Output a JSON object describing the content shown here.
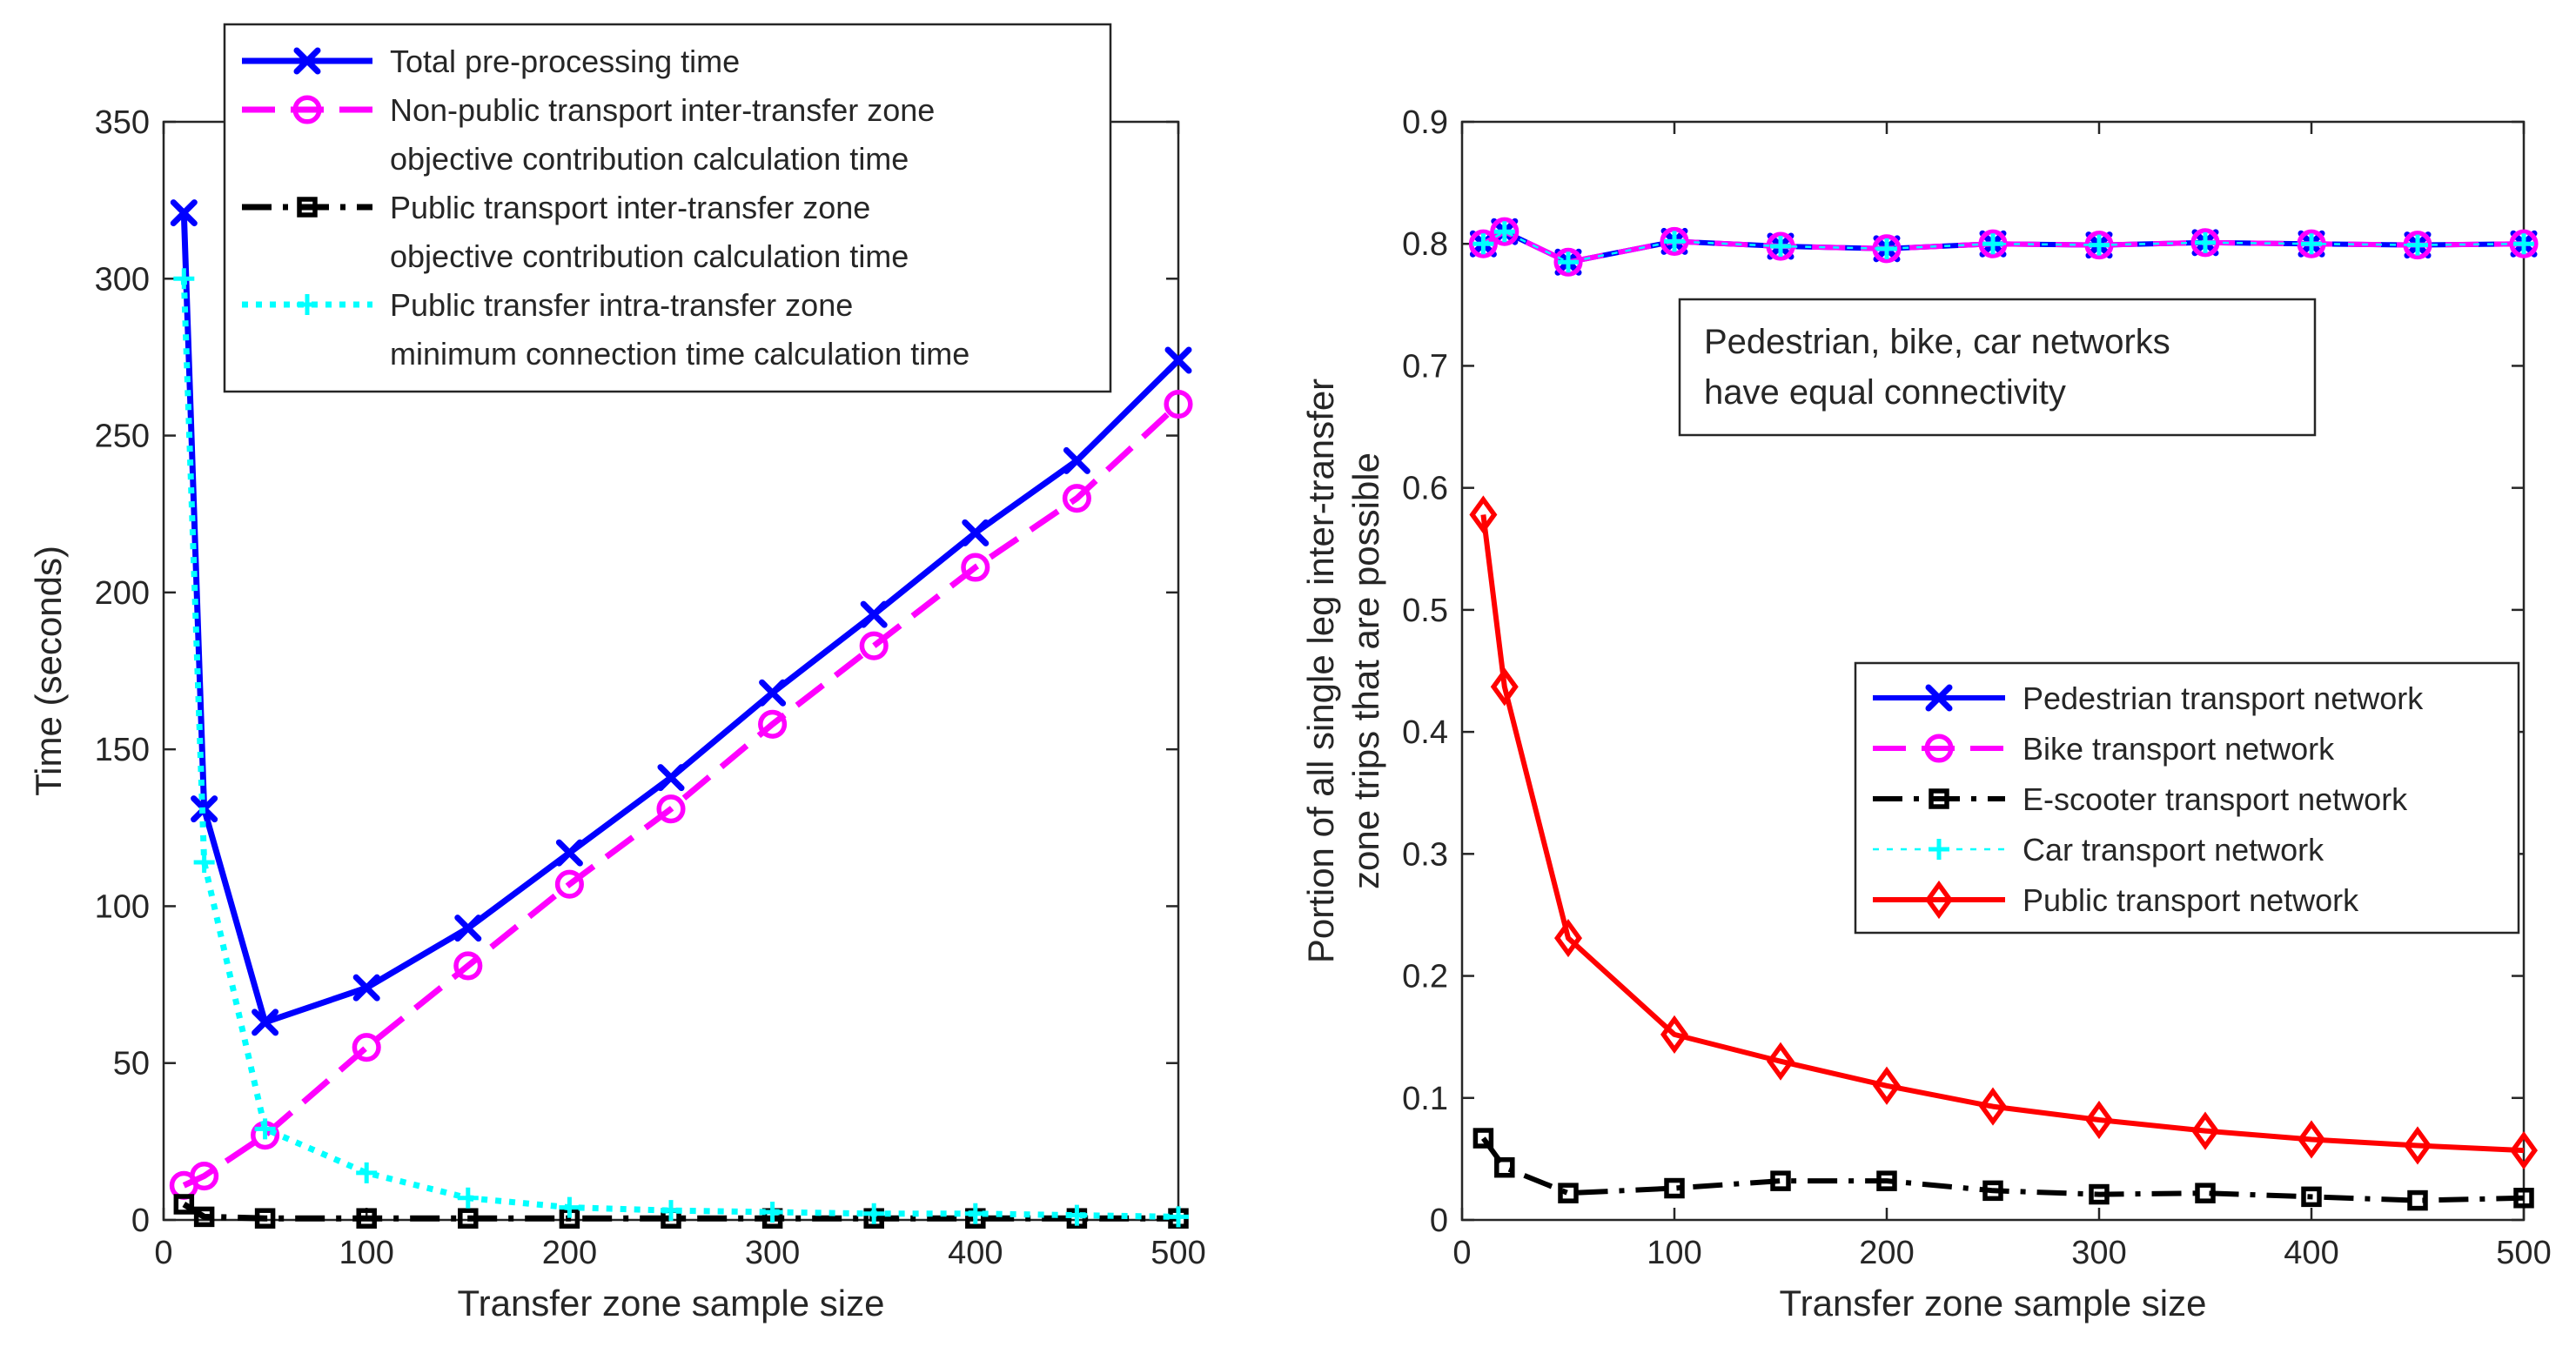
{
  "chart_data": [
    {
      "type": "line",
      "xlabel": "Transfer zone sample size",
      "ylabel": "Time (seconds)",
      "xlim": [
        0,
        500
      ],
      "ylim": [
        0,
        350
      ],
      "xticks": [
        0,
        100,
        200,
        300,
        400,
        500
      ],
      "yticks": [
        0,
        50,
        100,
        150,
        200,
        250,
        300,
        350
      ],
      "grid": false,
      "legend_position": "top-right",
      "x": [
        10,
        20,
        50,
        100,
        150,
        200,
        250,
        300,
        350,
        400,
        450,
        500
      ],
      "series": [
        {
          "name": "Total pre-processing time",
          "name_lines": [
            "Total pre-processing time"
          ],
          "color": "#0000ff",
          "dash": "solid",
          "marker": "x",
          "values": [
            321,
            131,
            63,
            74,
            93,
            117,
            141,
            168,
            193,
            219,
            242,
            274
          ]
        },
        {
          "name": "Non-public transport inter-transfer zone objective contribution calculation time",
          "name_lines": [
            "Non-public transport inter-transfer zone",
            "objective contribution calculation time"
          ],
          "color": "#ff00ff",
          "dash": "dashed",
          "marker": "circle",
          "values": [
            11,
            14,
            27,
            55,
            81,
            107,
            131,
            158,
            183,
            208,
            230,
            260
          ]
        },
        {
          "name": "Public transport inter-transfer zone objective contribution calculation time",
          "name_lines": [
            "Public transport inter-transfer zone",
            "objective contribution calculation time"
          ],
          "color": "#000000",
          "dash": "dashdot",
          "marker": "square",
          "values": [
            5,
            1,
            0.5,
            0.5,
            0.5,
            0.5,
            0.5,
            0.5,
            0.5,
            0.5,
            0.5,
            0.5
          ]
        },
        {
          "name": "Public transfer intra-transfer zone minimum connection time calculation time",
          "name_lines": [
            "Public transfer intra-transfer zone",
            "minimum connection time calculation time"
          ],
          "color": "#00ffff",
          "dash": "dotted",
          "marker": "plus",
          "values": [
            300,
            114,
            29,
            15,
            7,
            4,
            3,
            2.5,
            2,
            2,
            1.5,
            1
          ]
        }
      ]
    },
    {
      "type": "line",
      "xlabel": "Transfer zone sample size",
      "ylabel_lines": [
        "Portion of all single leg inter-transfer",
        "zone trips that are possible"
      ],
      "xlim": [
        0,
        500
      ],
      "ylim": [
        0,
        0.9
      ],
      "xticks": [
        0,
        100,
        200,
        300,
        400,
        500
      ],
      "yticks": [
        0,
        0.1,
        0.2,
        0.3,
        0.4,
        0.5,
        0.6,
        0.7,
        0.8,
        0.9
      ],
      "grid": false,
      "legend_position": "center-right",
      "annotation_lines": [
        "Pedestrian, bike, car networks",
        "have equal connectivity"
      ],
      "x": [
        10,
        20,
        50,
        100,
        150,
        200,
        250,
        300,
        350,
        400,
        450,
        500
      ],
      "series": [
        {
          "name": "Pedestrian transport network",
          "color": "#0000ff",
          "dash": "solid",
          "marker": "x",
          "width": 6,
          "values": [
            0.8,
            0.81,
            0.785,
            0.802,
            0.798,
            0.796,
            0.8,
            0.799,
            0.801,
            0.8,
            0.799,
            0.8
          ]
        },
        {
          "name": "Bike transport network",
          "color": "#ff00ff",
          "dash": "dashed",
          "marker": "circle",
          "width": 6,
          "values": [
            0.8,
            0.81,
            0.785,
            0.802,
            0.798,
            0.796,
            0.8,
            0.799,
            0.801,
            0.8,
            0.799,
            0.8
          ]
        },
        {
          "name": "E-scooter transport network",
          "color": "#000000",
          "dash": "dashdot",
          "marker": "square",
          "width": 6,
          "values": [
            0.067,
            0.043,
            0.022,
            0.026,
            0.032,
            0.032,
            0.024,
            0.021,
            0.022,
            0.019,
            0.016,
            0.018
          ]
        },
        {
          "name": "Car transport network",
          "color": "#00ffff",
          "dash": "dotted",
          "marker": "plus",
          "width": 2.5,
          "values": [
            0.8,
            0.81,
            0.785,
            0.802,
            0.798,
            0.796,
            0.8,
            0.799,
            0.801,
            0.8,
            0.799,
            0.8
          ]
        },
        {
          "name": "Public transport network",
          "color": "#ff0000",
          "dash": "solid",
          "marker": "diamond",
          "width": 6,
          "values": [
            0.578,
            0.437,
            0.231,
            0.152,
            0.13,
            0.11,
            0.093,
            0.082,
            0.073,
            0.066,
            0.061,
            0.057
          ]
        }
      ]
    }
  ]
}
